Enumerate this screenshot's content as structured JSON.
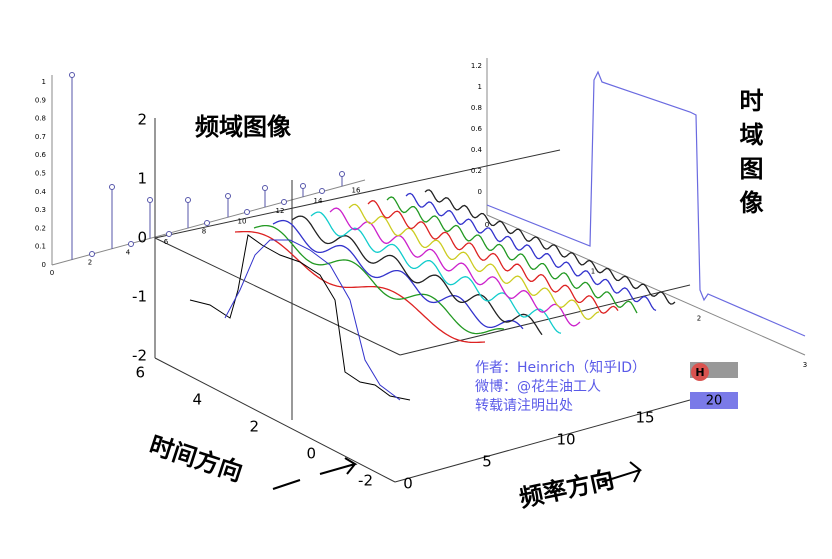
{
  "labels": {
    "frequency_image": "频域图像",
    "time_image": "时域图像",
    "time_direction": "时间方向",
    "frequency_direction": "频率方向"
  },
  "watermark": {
    "author": "作者：Heinrich（知乎ID）",
    "weibo": "微博：@花生油工人",
    "repost": "转载请注明出处",
    "badge": "H",
    "badge_number": "20"
  },
  "axes_3d": {
    "z_ticks": [
      "2",
      "1",
      "0",
      "-1",
      "-2"
    ],
    "time_ticks": [
      "6",
      "4",
      "2",
      "0",
      "-2"
    ],
    "frequency_ticks": [
      "0",
      "5",
      "10",
      "15"
    ]
  },
  "spectrum_plot": {
    "y_ticks": [
      "1",
      "0.9",
      "0.8",
      "0.7",
      "0.6",
      "0.5",
      "0.4",
      "0.3",
      "0.2",
      "0.1",
      "0"
    ],
    "x_ticks": [
      "0",
      "2",
      "4",
      "6",
      "8",
      "10",
      "12",
      "14",
      "16"
    ]
  },
  "time_plot": {
    "y_ticks": [
      "1.2",
      "1",
      "0.8",
      "0.6",
      "0.4",
      "0.2",
      "0"
    ],
    "x_ticks": [
      "0",
      "1",
      "2",
      "3"
    ]
  }
}
